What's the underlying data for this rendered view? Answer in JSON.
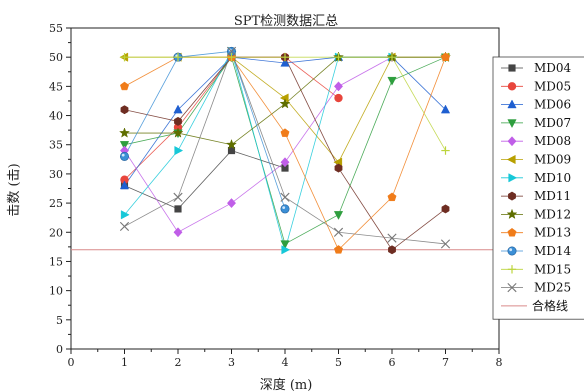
{
  "chart_data": {
    "type": "line",
    "title": "SPT检测数据汇总",
    "xlabel": "深度 (m)",
    "ylabel": "击数 (击)",
    "xlim": [
      0,
      8
    ],
    "ylim": [
      0,
      55
    ],
    "x_ticks": [
      "0",
      "1",
      "2",
      "3",
      "4",
      "5",
      "6",
      "7",
      "8"
    ],
    "y_ticks": [
      "0",
      "5",
      "10",
      "15",
      "20",
      "25",
      "30",
      "35",
      "40",
      "45",
      "50",
      "55"
    ],
    "legend_position": "right",
    "grid": false,
    "x": [
      1,
      2,
      3,
      4,
      5,
      6,
      7
    ],
    "series": [
      {
        "name": "MD04",
        "color": "#444444",
        "marker": "square",
        "points": [
          [
            1,
            28
          ],
          [
            2,
            24
          ],
          [
            3,
            34
          ],
          [
            4,
            31
          ]
        ]
      },
      {
        "name": "MD05",
        "color": "#e8453c",
        "marker": "circle",
        "points": [
          [
            1,
            29
          ],
          [
            2,
            38
          ],
          [
            3,
            50
          ],
          [
            4,
            50
          ],
          [
            5,
            43
          ]
        ]
      },
      {
        "name": "MD06",
        "color": "#1f5fd0",
        "marker": "triangle-up",
        "points": [
          [
            1,
            28
          ],
          [
            2,
            41
          ],
          [
            3,
            50
          ],
          [
            4,
            49
          ],
          [
            5,
            50
          ],
          [
            6,
            50
          ],
          [
            7,
            41
          ]
        ]
      },
      {
        "name": "MD07",
        "color": "#2e9e3e",
        "marker": "triangle-down",
        "points": [
          [
            1,
            35
          ],
          [
            2,
            37
          ],
          [
            3,
            50
          ],
          [
            4,
            18
          ],
          [
            5,
            23
          ],
          [
            6,
            46
          ],
          [
            7,
            50
          ]
        ]
      },
      {
        "name": "MD08",
        "color": "#c05ee8",
        "marker": "diamond",
        "points": [
          [
            1,
            34
          ],
          [
            2,
            20
          ],
          [
            3,
            25
          ],
          [
            4,
            32
          ],
          [
            5,
            45
          ],
          [
            6,
            50
          ]
        ]
      },
      {
        "name": "MD09",
        "color": "#b8a000",
        "marker": "triangle-left",
        "points": [
          [
            1,
            50
          ],
          [
            2,
            50
          ],
          [
            3,
            50
          ],
          [
            4,
            43
          ],
          [
            5,
            32
          ],
          [
            6,
            50
          ],
          [
            7,
            50
          ]
        ]
      },
      {
        "name": "MD10",
        "color": "#16c8d8",
        "marker": "triangle-right",
        "points": [
          [
            1,
            23
          ],
          [
            2,
            34
          ],
          [
            3,
            51
          ],
          [
            4,
            17
          ],
          [
            5,
            50
          ],
          [
            6,
            50
          ]
        ]
      },
      {
        "name": "MD11",
        "color": "#6e2d22",
        "marker": "hexagon",
        "points": [
          [
            1,
            41
          ],
          [
            2,
            39
          ],
          [
            3,
            50
          ],
          [
            4,
            50
          ],
          [
            5,
            31
          ],
          [
            6,
            17
          ],
          [
            7,
            24
          ]
        ]
      },
      {
        "name": "MD12",
        "color": "#5f6e00",
        "marker": "star",
        "points": [
          [
            1,
            37
          ],
          [
            2,
            37
          ],
          [
            3,
            35
          ],
          [
            4,
            42
          ],
          [
            5,
            50
          ],
          [
            6,
            50
          ],
          [
            7,
            50
          ]
        ]
      },
      {
        "name": "MD13",
        "color": "#f07c1a",
        "marker": "pentagon",
        "points": [
          [
            1,
            45
          ],
          [
            2,
            50
          ],
          [
            3,
            50
          ],
          [
            4,
            37
          ],
          [
            5,
            17
          ],
          [
            6,
            26
          ],
          [
            7,
            50
          ]
        ]
      },
      {
        "name": "MD14",
        "color": "#3b8fd6",
        "marker": "sphere",
        "points": [
          [
            1,
            33
          ],
          [
            2,
            50
          ],
          [
            3,
            51
          ],
          [
            4,
            24
          ]
        ]
      },
      {
        "name": "MD15",
        "color": "#bcd43c",
        "marker": "plus",
        "points": [
          [
            1,
            50
          ],
          [
            2,
            50
          ],
          [
            3,
            50
          ],
          [
            4,
            50
          ],
          [
            5,
            50
          ],
          [
            6,
            50
          ],
          [
            7,
            34
          ]
        ]
      },
      {
        "name": "MD25",
        "color": "#777777",
        "marker": "x",
        "points": [
          [
            1,
            21
          ],
          [
            2,
            26
          ],
          [
            3,
            51
          ],
          [
            4,
            26
          ],
          [
            5,
            20
          ],
          [
            6,
            19
          ],
          [
            7,
            18
          ]
        ]
      }
    ],
    "reference_line": {
      "name": "合格线",
      "value": 17,
      "color": "#d98a8a"
    }
  }
}
